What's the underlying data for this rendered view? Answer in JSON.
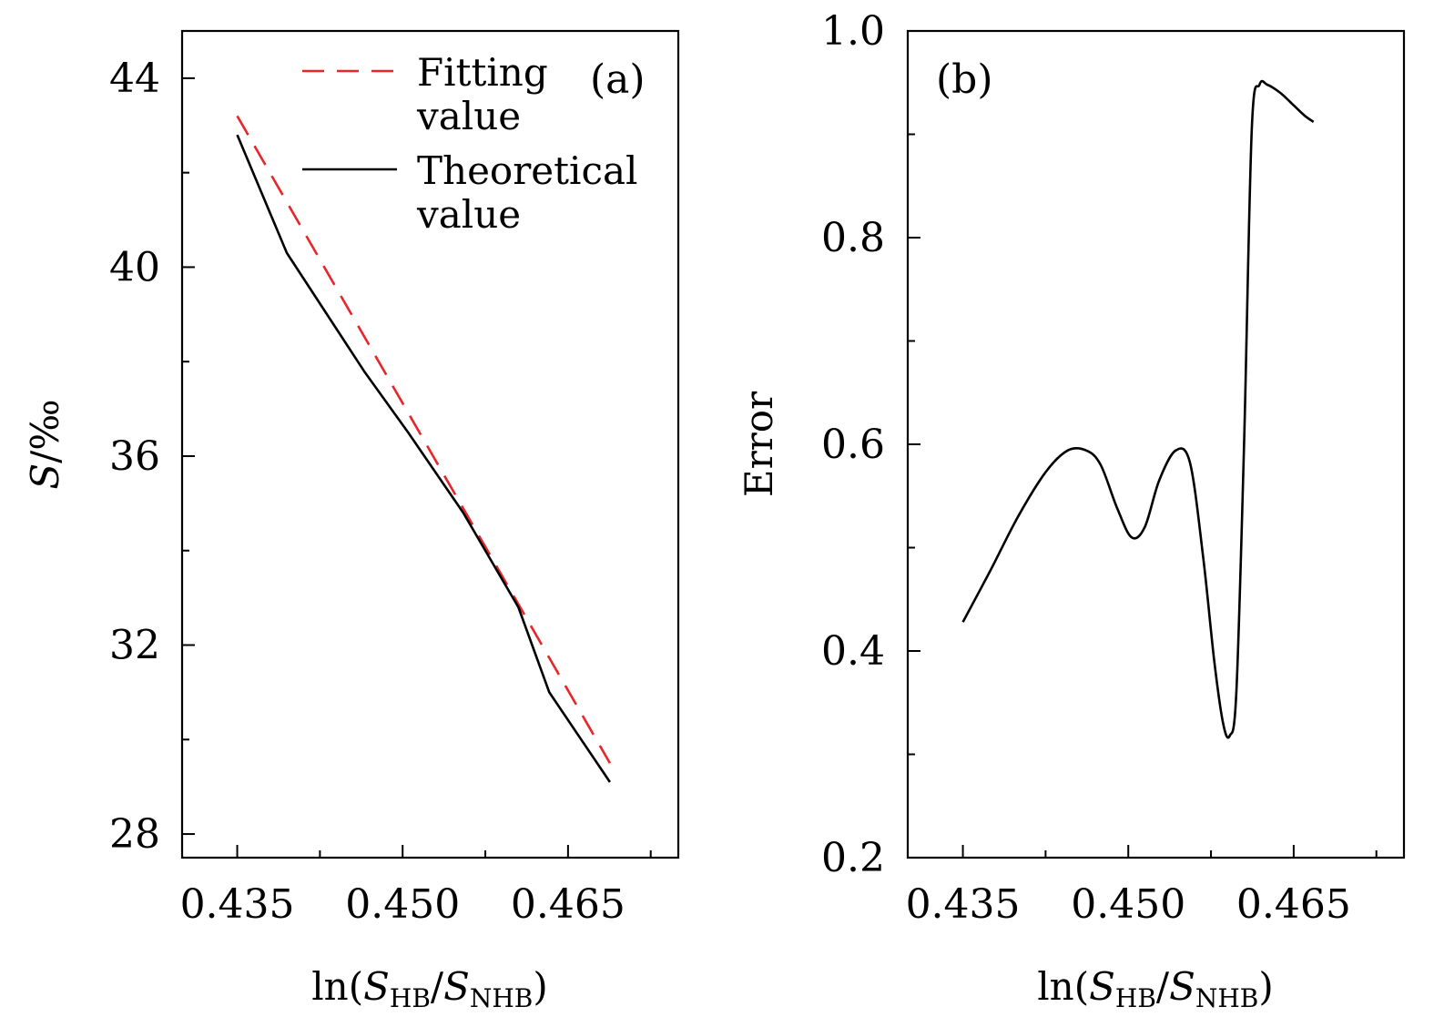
{
  "chart_data": [
    {
      "type": "line",
      "panel": "(a)",
      "xlabel": {
        "prefix": "ln(",
        "s1": "S",
        "sub1": "HB",
        "slash": "/",
        "s2": "S",
        "sub2": "NHB",
        "suffix": ")"
      },
      "ylabel": {
        "var": "S",
        "unit": "/‰"
      },
      "xlim": [
        0.43,
        0.475
      ],
      "ylim": [
        27.5,
        45
      ],
      "xticks": [
        0.435,
        0.45,
        0.465
      ],
      "xtick_labels": [
        "0.435",
        "0.450",
        "0.465"
      ],
      "xminor": [
        0.4425,
        0.4575,
        0.4725
      ],
      "yticks": [
        28,
        32,
        36,
        40,
        44
      ],
      "ytick_labels": [
        "28",
        "32",
        "36",
        "40",
        "44"
      ],
      "yminor": [
        30,
        34,
        38,
        42
      ],
      "legend_position": "top-right",
      "series": [
        {
          "name": [
            "Fitting",
            "value"
          ],
          "style": "dashed",
          "color": "#e8262a",
          "x": [
            0.435,
            0.4688
          ],
          "y": [
            43.2,
            29.5
          ]
        },
        {
          "name": [
            "Theoretical",
            "value"
          ],
          "style": "solid",
          "color": "#000000",
          "x": [
            0.435,
            0.4395,
            0.4465,
            0.4505,
            0.4555,
            0.4605,
            0.4633,
            0.4688
          ],
          "y": [
            42.8,
            40.3,
            37.8,
            36.5,
            34.8,
            32.8,
            31.0,
            29.1
          ]
        }
      ]
    },
    {
      "type": "line",
      "panel": "(b)",
      "xlabel": {
        "prefix": "ln(",
        "s1": "S",
        "sub1": "HB",
        "slash": "/",
        "s2": "S",
        "sub2": "NHB",
        "suffix": ")"
      },
      "ylabel": {
        "text": "Error"
      },
      "xlim": [
        0.43,
        0.475
      ],
      "ylim": [
        0.2,
        1.0
      ],
      "xticks": [
        0.435,
        0.45,
        0.465
      ],
      "xtick_labels": [
        "0.435",
        "0.450",
        "0.465"
      ],
      "xminor": [
        0.4425,
        0.4575,
        0.4725
      ],
      "yticks": [
        0.2,
        0.4,
        0.6,
        0.8,
        1.0
      ],
      "ytick_labels": [
        "0.2",
        "0.4",
        "0.6",
        "0.8",
        "1.0"
      ],
      "yminor": [
        0.3,
        0.5,
        0.7,
        0.9
      ],
      "series": [
        {
          "style": "solid",
          "color": "#000000",
          "x": [
            0.435,
            0.4375,
            0.44,
            0.4425,
            0.4445,
            0.4462,
            0.4475,
            0.449,
            0.4503,
            0.4515,
            0.4528,
            0.4543,
            0.4556,
            0.4568,
            0.4578,
            0.4586,
            0.4592,
            0.4598,
            0.4605,
            0.4612,
            0.4619,
            0.4626,
            0.4638,
            0.465,
            0.466,
            0.4668
          ],
          "y": [
            0.428,
            0.478,
            0.53,
            0.573,
            0.594,
            0.594,
            0.58,
            0.538,
            0.51,
            0.52,
            0.565,
            0.594,
            0.582,
            0.49,
            0.39,
            0.33,
            0.318,
            0.36,
            0.6,
            0.905,
            0.948,
            0.948,
            0.94,
            0.928,
            0.918,
            0.912
          ]
        }
      ]
    }
  ]
}
